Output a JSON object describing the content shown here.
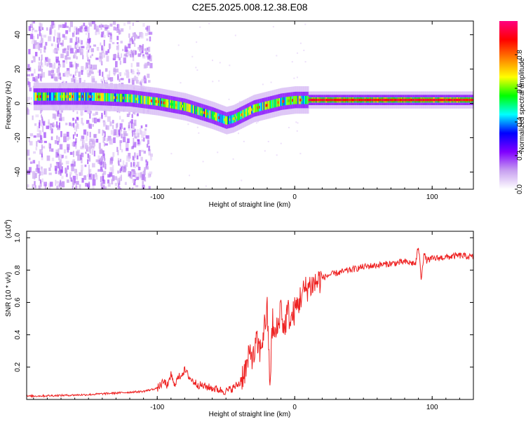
{
  "title": "C2E5.2025.008.12.38.E08",
  "chart_data": [
    {
      "type": "heatmap",
      "xlabel": "Height of straight line (km)",
      "ylabel": "Frequency (Hz)",
      "xlim": [
        -195,
        130
      ],
      "ylim": [
        -50,
        48
      ],
      "x_ticks": [
        -100,
        0,
        100
      ],
      "x_tick_labels": [
        "-100",
        "0",
        "100"
      ],
      "y_ticks": [
        -40,
        -20,
        0,
        20,
        40
      ],
      "y_tick_labels": [
        "-40",
        "-20",
        "0",
        "20",
        "40"
      ],
      "colorbar": {
        "label": "Normalized spectral amplitude",
        "ticks": [
          0.0,
          0.2,
          0.4,
          0.6,
          0.8
        ],
        "tick_labels": [
          "0.0",
          "0.2",
          "0.4",
          "0.6",
          "0.8"
        ],
        "range": [
          0,
          1
        ],
        "colors": [
          "#ffffff",
          "#c8a0f0",
          "#8000ff",
          "#0000ff",
          "#00ffff",
          "#00ff00",
          "#ffff00",
          "#ff8000",
          "#ff0000",
          "#ff0080"
        ]
      },
      "ridge": {
        "x": [
          -190,
          -150,
          -120,
          -100,
          -80,
          -60,
          -50,
          -45,
          -40,
          -30,
          -20,
          -10,
          0,
          10,
          30,
          60,
          90,
          110,
          130
        ],
        "freq": [
          4,
          4,
          3,
          1,
          -2,
          -7,
          -10,
          -9,
          -7,
          -3,
          -1,
          1,
          2,
          2,
          2,
          2,
          2,
          2,
          2
        ]
      }
    },
    {
      "type": "line",
      "xlabel": "Height of straight line (km)",
      "ylabel": "SNR (10 * v/v)",
      "y_scale_label": "(x10",
      "y_scale_exp": "4",
      "y_scale_close": ")",
      "xlim": [
        -195,
        130
      ],
      "ylim": [
        0,
        1.04
      ],
      "x_ticks": [
        -100,
        0,
        100
      ],
      "x_tick_labels": [
        "-100",
        "0",
        "100"
      ],
      "y_ticks": [
        0.2,
        0.4,
        0.6,
        0.8,
        1.0
      ],
      "y_tick_labels": [
        "0.2",
        "0.4",
        "0.6",
        "0.8",
        "1.0"
      ],
      "color": "#ee2222",
      "series": [
        {
          "x": [
            -195,
            -170,
            -150,
            -130,
            -110,
            -100,
            -95,
            -92,
            -90,
            -88,
            -85,
            -80,
            -75,
            -70,
            -65,
            -60,
            -55,
            -50,
            -45,
            -40,
            -38,
            -35,
            -32,
            -30,
            -28,
            -25,
            -22,
            -20,
            -18,
            -16,
            -15,
            -12,
            -10,
            -8,
            -5,
            -3,
            0,
            3,
            5,
            8,
            10,
            15,
            20,
            25,
            30,
            40,
            50,
            60,
            70,
            80,
            88,
            90,
            92,
            94,
            96,
            100,
            110,
            120,
            130
          ],
          "y": [
            0.02,
            0.025,
            0.03,
            0.04,
            0.05,
            0.07,
            0.11,
            0.08,
            0.16,
            0.09,
            0.13,
            0.18,
            0.12,
            0.09,
            0.08,
            0.07,
            0.06,
            0.05,
            0.07,
            0.1,
            0.15,
            0.2,
            0.3,
            0.25,
            0.35,
            0.3,
            0.45,
            0.55,
            0.1,
            0.5,
            0.38,
            0.45,
            0.6,
            0.42,
            0.55,
            0.48,
            0.55,
            0.6,
            0.65,
            0.68,
            0.7,
            0.72,
            0.75,
            0.77,
            0.78,
            0.8,
            0.82,
            0.83,
            0.84,
            0.85,
            0.84,
            0.95,
            0.75,
            0.9,
            0.86,
            0.87,
            0.88,
            0.89,
            0.88
          ]
        }
      ]
    }
  ]
}
